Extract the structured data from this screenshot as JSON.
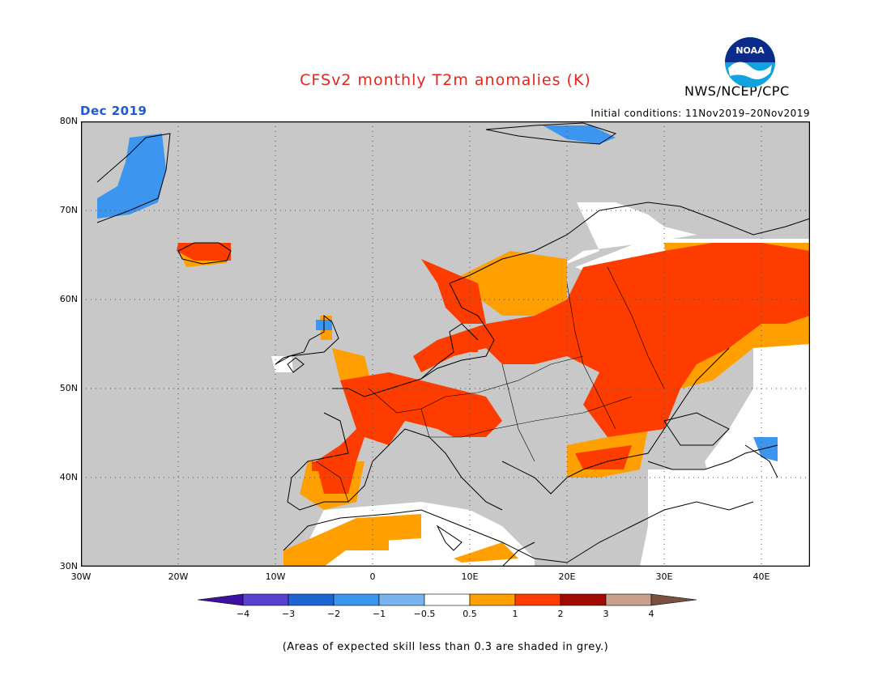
{
  "title": "CFSv2 monthly T2m anomalies (K)",
  "agency": "NWS/NCEP/CPC",
  "logo_text": "NOAA",
  "period": "Dec 2019",
  "initial_conditions": "Initial conditions: 11Nov2019–20Nov2019",
  "footnote": "(Areas of expected skill less than 0.3 are shaded in grey.)",
  "map": {
    "lon_range": [
      -30,
      45
    ],
    "lat_range": [
      30,
      80
    ],
    "lat_labels": [
      "30N",
      "40N",
      "50N",
      "60N",
      "70N",
      "80N"
    ],
    "lon_labels": [
      "30W",
      "20W",
      "10W",
      "0",
      "10E",
      "20E",
      "30E",
      "40E"
    ],
    "grid": "dotted"
  },
  "legend": {
    "ticks": [
      "−4",
      "−3",
      "−2",
      "−1",
      "−0.5",
      "0.5",
      "1",
      "2",
      "3",
      "4"
    ],
    "colors": [
      "#3c10a0",
      "#5a40d0",
      "#1e64d2",
      "#3c96f0",
      "#78b4f0",
      "#ffffff",
      "#ffa000",
      "#ff3c00",
      "#a00a00",
      "#c8a08c",
      "#7a5040"
    ]
  },
  "colors": {
    "no_skill_grey": "#c8c8c8",
    "neutral_white": "#ffffff",
    "warm_1": "#ffa000",
    "warm_2": "#ff3c00",
    "cool_1": "#3c96f0",
    "title_red": "#e8241c",
    "period_blue": "#1e5ad2"
  }
}
